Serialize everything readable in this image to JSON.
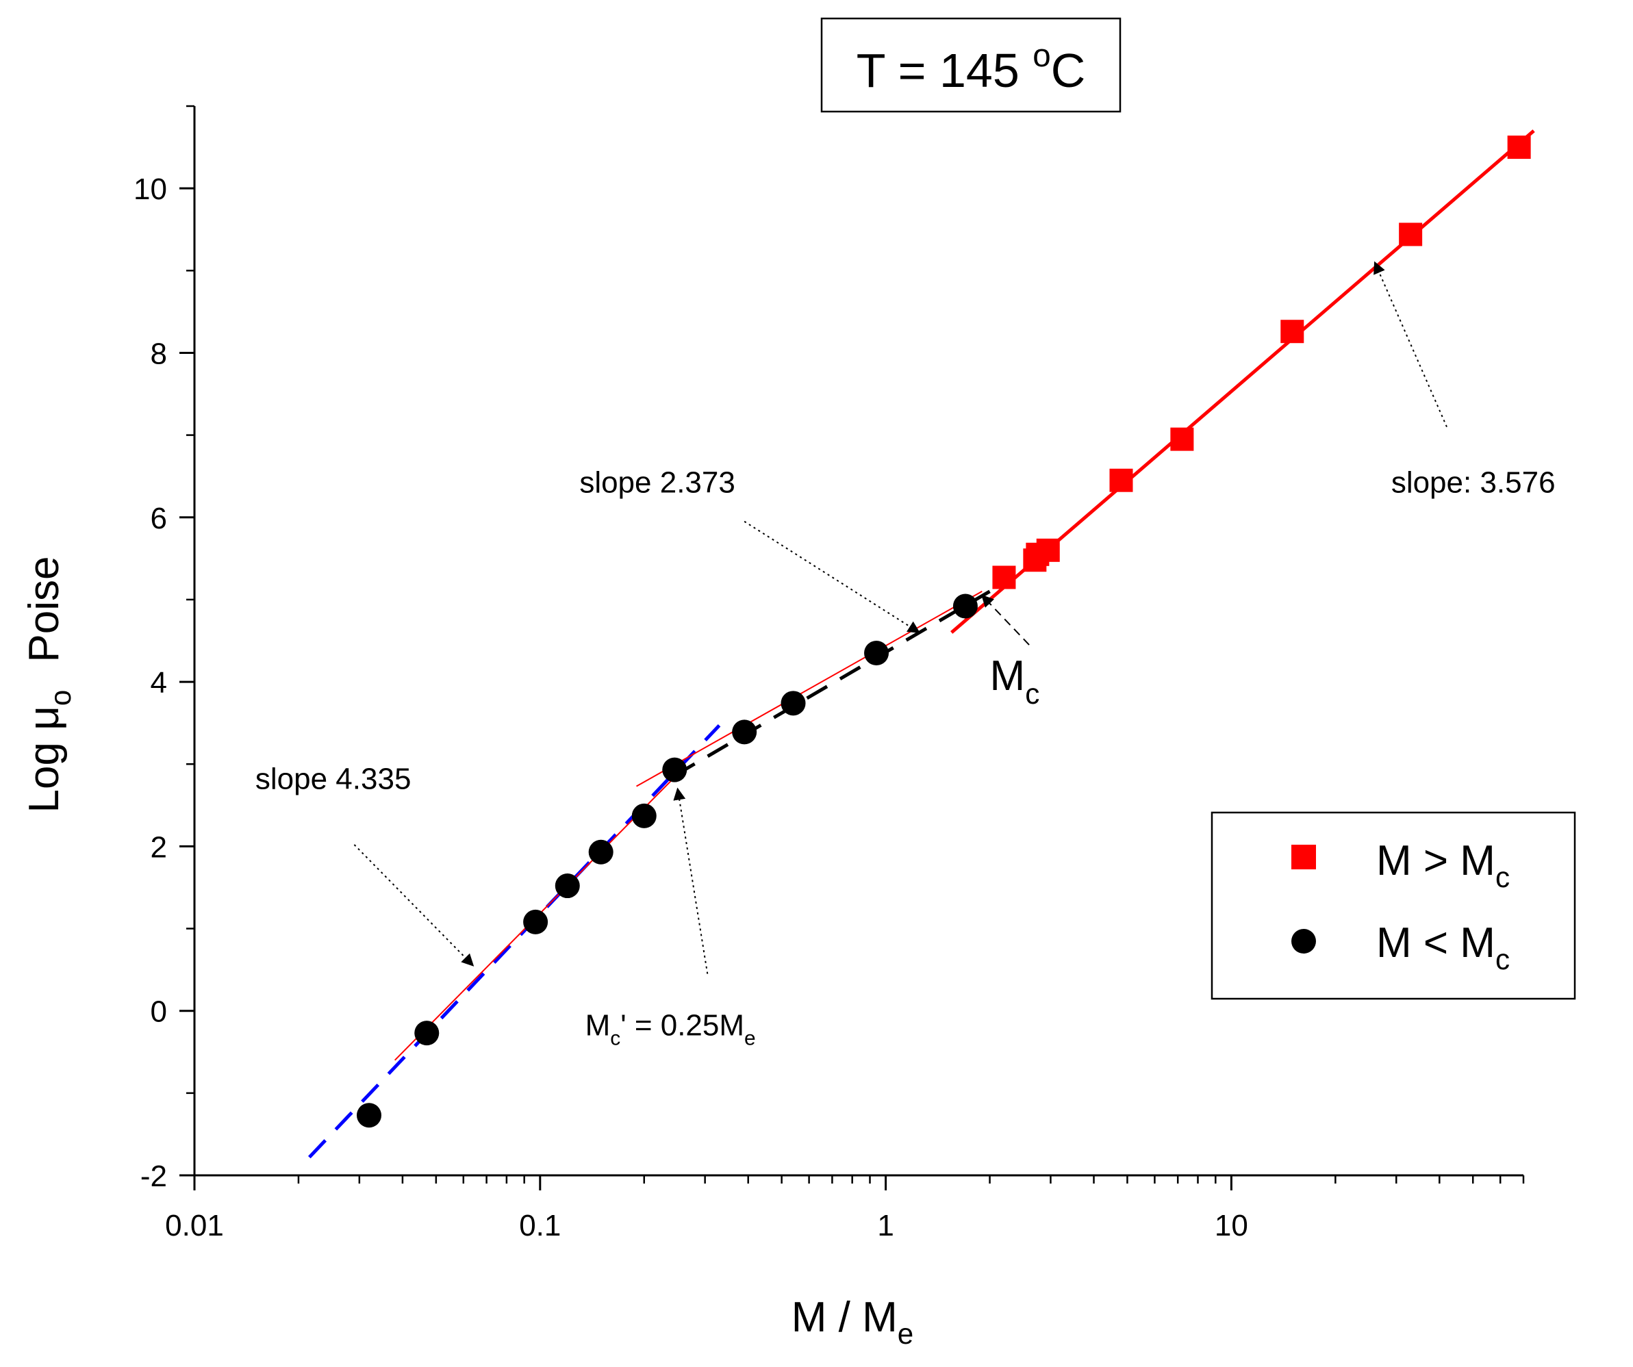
{
  "chart_data": {
    "type": "scatter",
    "title": "T = 145 °C",
    "title_parts": {
      "prefix": "T = 145 ",
      "sup": "o",
      "suffix": "C"
    },
    "xlabel": {
      "main": "M / M",
      "sub": "e"
    },
    "ylabel": {
      "main": "Log μ",
      "sub": "o",
      "suffix": "Poise"
    },
    "xscale": "log",
    "xlim": [
      0.01,
      70
    ],
    "ylim": [
      -2,
      11
    ],
    "x_ticks": [
      {
        "value": 0.01,
        "label": "0.01"
      },
      {
        "value": 0.1,
        "label": "0.1"
      },
      {
        "value": 1,
        "label": "1"
      },
      {
        "value": 10,
        "label": "10"
      }
    ],
    "y_ticks": [
      {
        "value": -2,
        "label": "-2"
      },
      {
        "value": 0,
        "label": "0"
      },
      {
        "value": 2,
        "label": "2"
      },
      {
        "value": 4,
        "label": "4"
      },
      {
        "value": 6,
        "label": "6"
      },
      {
        "value": 8,
        "label": "8"
      },
      {
        "value": 10,
        "label": "10"
      }
    ],
    "series": [
      {
        "name": "M > M_c",
        "label": {
          "main": "M > M",
          "sub": "c"
        },
        "marker": "square",
        "color": "#ff0000",
        "points": [
          [
            2.2,
            5.27
          ],
          [
            2.7,
            5.48
          ],
          [
            2.75,
            5.55
          ],
          [
            2.95,
            5.6
          ],
          [
            4.8,
            6.45
          ],
          [
            7.2,
            6.95
          ],
          [
            15.0,
            8.26
          ],
          [
            33.0,
            9.44
          ],
          [
            68.0,
            10.5
          ]
        ]
      },
      {
        "name": "M < M_c",
        "label": {
          "main": "M < M",
          "sub": "c"
        },
        "marker": "circle",
        "color": "#000000",
        "points": [
          [
            0.032,
            -1.27
          ],
          [
            0.047,
            -0.27
          ],
          [
            0.097,
            1.08
          ],
          [
            0.12,
            1.52
          ],
          [
            0.15,
            1.93
          ],
          [
            0.2,
            2.37
          ],
          [
            0.245,
            2.93
          ],
          [
            0.39,
            3.39
          ],
          [
            0.54,
            3.74
          ],
          [
            0.94,
            4.35
          ],
          [
            1.7,
            4.92
          ]
        ]
      }
    ],
    "fits": [
      {
        "name": "fit-slope-4.335",
        "color": "#0000ff",
        "dash": "dashed",
        "x": [
          0.0215,
          0.33
        ],
        "y": [
          -1.78,
          3.47
        ]
      },
      {
        "name": "fit-red-thin-low",
        "color": "#ff0000",
        "dash": "solid-thin",
        "x": [
          0.038,
          0.26
        ],
        "y": [
          -0.6,
          2.95
        ]
      },
      {
        "name": "fit-slope-2.373",
        "color": "#000000",
        "dash": "dashed",
        "x": [
          0.245,
          2.0
        ],
        "y": [
          2.86,
          5.1
        ]
      },
      {
        "name": "fit-red-thin-mid",
        "color": "#ff0000",
        "dash": "solid-thin",
        "x": [
          0.19,
          1.9
        ],
        "y": [
          2.73,
          5.1
        ]
      },
      {
        "name": "fit-slope-3.576",
        "color": "#ff0000",
        "dash": "solid",
        "x": [
          1.55,
          75.0
        ],
        "y": [
          4.6,
          10.7
        ]
      }
    ],
    "annotations": [
      {
        "name": "annot-slope-4335",
        "text": "slope 4.335",
        "tx": 0.015,
        "ty": 2.7,
        "ax1": 0.029,
        "ay1": 2.02,
        "ax2": 0.064,
        "ay2": 0.55
      },
      {
        "name": "annot-mc-prime",
        "main": "M",
        "sub1": "c",
        "mid": "' = 0.25M",
        "sub2": "e",
        "tx": 0.135,
        "ty": -0.3,
        "ax1": 0.305,
        "ay1": 0.45,
        "ax2": 0.25,
        "ay2": 2.7
      },
      {
        "name": "annot-slope-2373",
        "text": "slope 2.373",
        "tx": 0.13,
        "ty": 6.3,
        "ax1": 0.39,
        "ay1": 5.95,
        "ax2": 1.25,
        "ay2": 4.6
      },
      {
        "name": "annot-mc",
        "main": "M",
        "sub": "c",
        "tx": 2.0,
        "ty": 3.9,
        "ax1": 2.6,
        "ay1": 4.45,
        "ax2": 1.9,
        "ay2": 5.05
      },
      {
        "name": "annot-slope-3576",
        "text": "slope: 3.576",
        "tx": 29.0,
        "ty": 6.3,
        "ax1": 42.0,
        "ay1": 7.1,
        "ax2": 26.0,
        "ay2": 9.1
      }
    ],
    "legend": {
      "position": "center-right"
    },
    "grid": false
  }
}
